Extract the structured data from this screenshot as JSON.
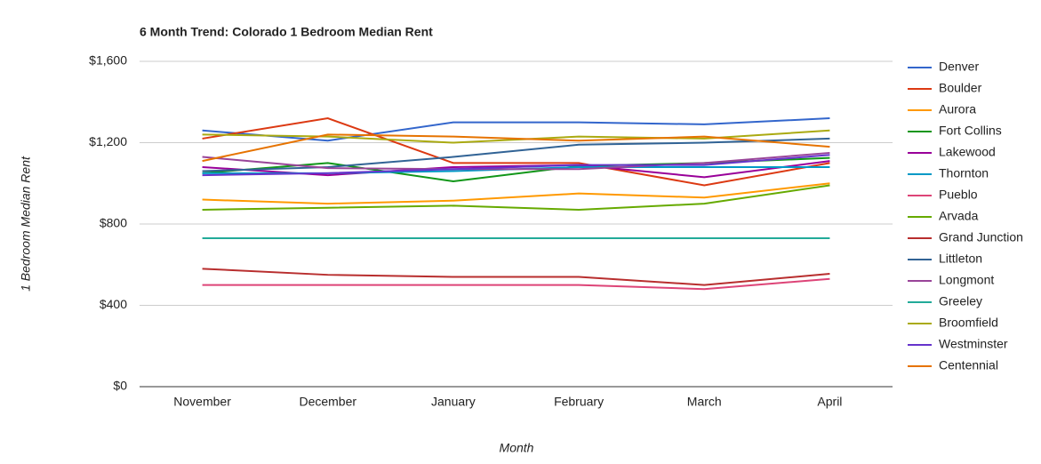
{
  "chart_data": {
    "type": "line",
    "title": "6 Month Trend: Colorado 1 Bedroom Median Rent",
    "x_label": "Month",
    "y_label": "1 Bedroom Median Rent",
    "categories": [
      "November",
      "December",
      "January",
      "February",
      "March",
      "April"
    ],
    "ylim": [
      0,
      1600
    ],
    "yticks": [
      {
        "value": 0,
        "label": "$0"
      },
      {
        "value": 400,
        "label": "$400"
      },
      {
        "value": 800,
        "label": "$800"
      },
      {
        "value": 1200,
        "label": "$1,200"
      },
      {
        "value": 1600,
        "label": "$1,600"
      }
    ],
    "grid": true,
    "legend": "right",
    "series": [
      {
        "name": "Denver",
        "color": "#3366cc",
        "values": [
          1260,
          1210,
          1300,
          1300,
          1290,
          1320
        ]
      },
      {
        "name": "Boulder",
        "color": "#dc3912",
        "values": [
          1220,
          1320,
          1100,
          1100,
          990,
          1100
        ]
      },
      {
        "name": "Aurora",
        "color": "#ff9900",
        "values": [
          920,
          900,
          915,
          950,
          930,
          1000
        ]
      },
      {
        "name": "Fort Collins",
        "color": "#109618",
        "values": [
          1050,
          1100,
          1010,
          1085,
          1100,
          1125
        ]
      },
      {
        "name": "Lakewood",
        "color": "#990099",
        "values": [
          1080,
          1040,
          1080,
          1090,
          1030,
          1110
        ]
      },
      {
        "name": "Thornton",
        "color": "#0099c6",
        "values": [
          1050,
          1050,
          1060,
          1080,
          1080,
          1080
        ]
      },
      {
        "name": "Pueblo",
        "color": "#dd4477",
        "values": [
          500,
          500,
          500,
          500,
          480,
          530
        ]
      },
      {
        "name": "Arvada",
        "color": "#66aa00",
        "values": [
          870,
          880,
          890,
          870,
          900,
          990
        ]
      },
      {
        "name": "Grand Junction",
        "color": "#b82e2e",
        "values": [
          580,
          550,
          540,
          540,
          500,
          555
        ]
      },
      {
        "name": "Littleton",
        "color": "#316395",
        "values": [
          1060,
          1080,
          1130,
          1190,
          1200,
          1220
        ]
      },
      {
        "name": "Longmont",
        "color": "#994499",
        "values": [
          1130,
          1075,
          1070,
          1070,
          1100,
          1150
        ]
      },
      {
        "name": "Greeley",
        "color": "#22aa99",
        "values": [
          730,
          730,
          730,
          730,
          730,
          730
        ]
      },
      {
        "name": "Broomfield",
        "color": "#aaaa11",
        "values": [
          1240,
          1230,
          1200,
          1230,
          1220,
          1260
        ]
      },
      {
        "name": "Westminster",
        "color": "#6633cc",
        "values": [
          1040,
          1050,
          1070,
          1090,
          1090,
          1140
        ]
      },
      {
        "name": "Centennial",
        "color": "#e67300",
        "values": [
          1110,
          1240,
          1230,
          1210,
          1230,
          1180
        ]
      }
    ]
  }
}
